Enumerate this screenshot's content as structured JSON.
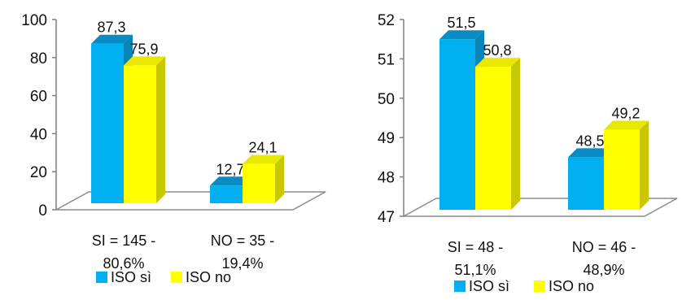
{
  "chart_data": [
    {
      "type": "bar",
      "categories": [
        [
          "SI = 145 -",
          "80,6%"
        ],
        [
          "NO = 35 -",
          "19,4%"
        ]
      ],
      "series": [
        {
          "name": "ISO sì",
          "values": [
            87.3,
            12.7
          ],
          "labels": [
            "87,3",
            "12,7"
          ]
        },
        {
          "name": "ISO no",
          "values": [
            75.9,
            24.1
          ],
          "labels": [
            "75,9",
            "24,1"
          ]
        }
      ],
      "ylim": [
        0,
        100
      ],
      "yticks": [
        0,
        20,
        40,
        60,
        80,
        100
      ],
      "grid": false,
      "legend": "bottom",
      "style": "3d"
    },
    {
      "type": "bar",
      "categories": [
        [
          "SI = 48 -",
          "51,1%"
        ],
        [
          "NO = 46 -",
          "48,9%"
        ]
      ],
      "series": [
        {
          "name": "ISO sì",
          "values": [
            51.5,
            48.5
          ],
          "labels": [
            "51,5",
            "48,5"
          ]
        },
        {
          "name": "ISO no",
          "values": [
            50.8,
            49.2
          ],
          "labels": [
            "50,8",
            "49,2"
          ]
        }
      ],
      "ylim": [
        47,
        52
      ],
      "yticks": [
        47,
        48,
        49,
        50,
        51,
        52
      ],
      "grid": false,
      "legend": "bottom",
      "style": "3d"
    }
  ],
  "colors": {
    "series1": "#00B0F0",
    "series1_top": "#0A8BC4",
    "series1_side": "#0884B8",
    "series2": "#FFFF00",
    "series2_top": "#E8E800",
    "series2_side": "#C8C800",
    "axis": "#7f7f7f",
    "floor_edge": "#8c8c8c"
  }
}
